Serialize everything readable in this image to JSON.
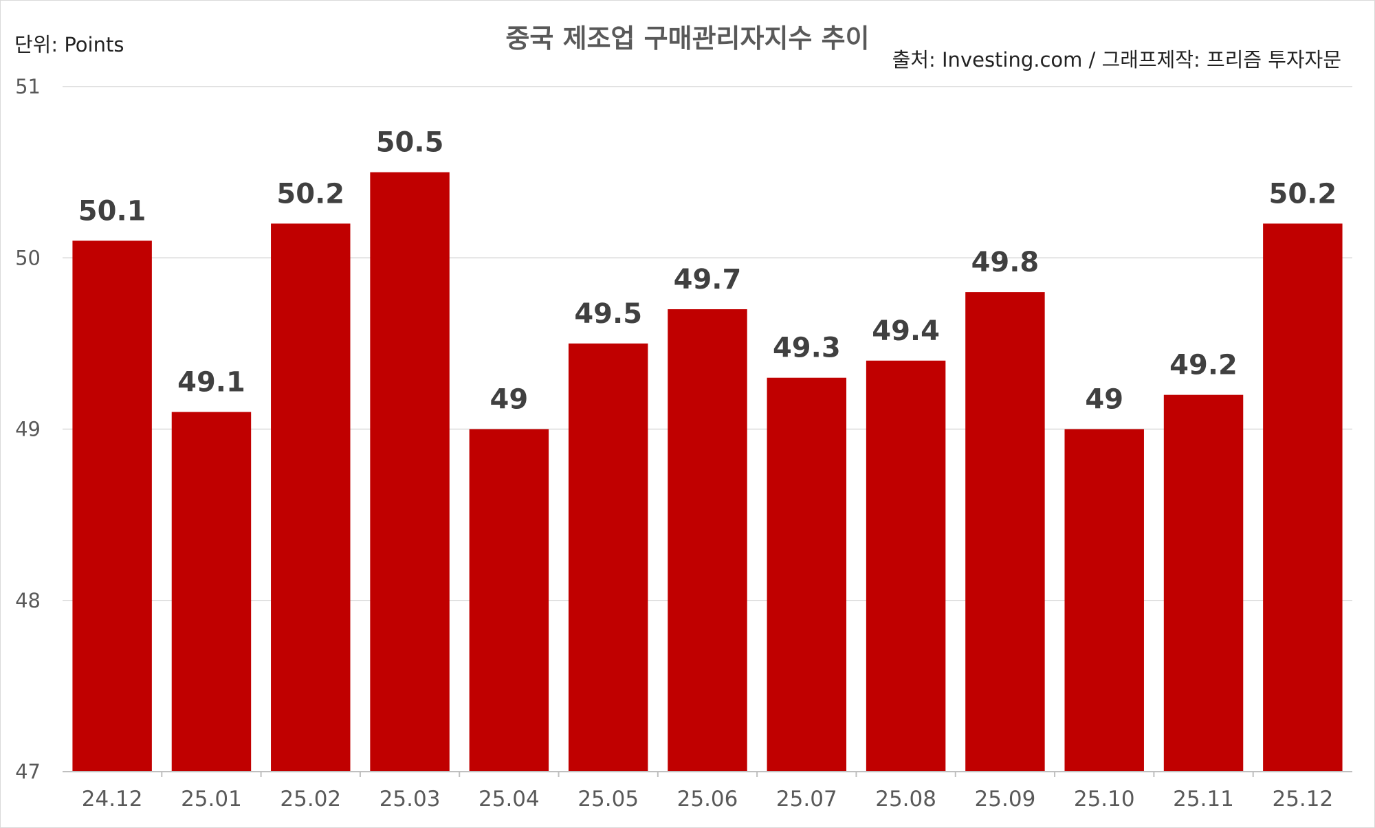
{
  "chart_data": {
    "type": "bar",
    "title": "중국 제조업 구매관리자지수 추이",
    "unit_label": "단위: Points",
    "source_label": "출처: Investing.com / 그래프제작: 프리즘 투자자문",
    "categories": [
      "24.12",
      "25.01",
      "25.02",
      "25.03",
      "25.04",
      "25.05",
      "25.06",
      "25.07",
      "25.08",
      "25.09",
      "25.10",
      "25.11",
      "25.12"
    ],
    "values": [
      50.1,
      49.1,
      50.2,
      50.5,
      49,
      49.5,
      49.7,
      49.3,
      49.4,
      49.8,
      49,
      49.2,
      50.2
    ],
    "data_labels": [
      "50.1",
      "49.1",
      "50.2",
      "50.5",
      "49",
      "49.5",
      "49.7",
      "49.3",
      "49.4",
      "49.8",
      "49",
      "49.2",
      "50.2"
    ],
    "ylim": [
      47,
      51
    ],
    "yticks": [
      "47",
      "48",
      "49",
      "50",
      "51"
    ],
    "grid": true,
    "legend": "none",
    "bar_color": "#c00000"
  }
}
